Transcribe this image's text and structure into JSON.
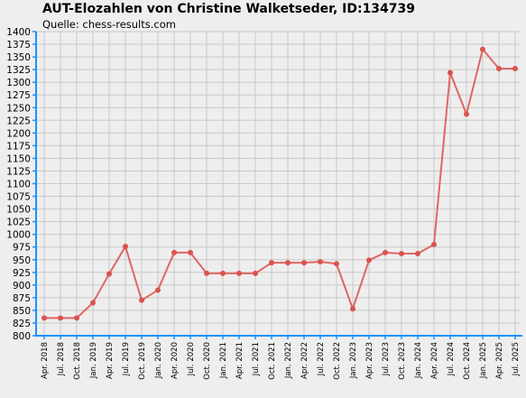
{
  "title": "AUT-Elozahlen von Christine Walketseder, ID:134739",
  "subtitle": "Quelle: chess-results.com",
  "colors": {
    "background": "#eeeeee",
    "grid": "#c8c8c8",
    "axis": "#1e90ff",
    "line": "#e06666",
    "marker": "#d9534f"
  },
  "chart_data": {
    "type": "line",
    "title": "AUT-Elozahlen von Christine Walketseder, ID:134739",
    "subtitle": "Quelle: chess-results.com",
    "xlabel": "",
    "ylabel": "",
    "ylim": [
      800,
      1400
    ],
    "ytick_step": 25,
    "grid": true,
    "legend": "none",
    "categories": [
      "Apr. 2018",
      "Jul. 2018",
      "Oct. 2018",
      "Jan. 2019",
      "Apr. 2019",
      "Jul. 2019",
      "Oct. 2019",
      "Jan. 2020",
      "Apr. 2020",
      "Jul. 2020",
      "Oct. 2020",
      "Jan. 2021",
      "Apr. 2021",
      "Jul. 2021",
      "Oct. 2021",
      "Jan. 2022",
      "Apr. 2022",
      "Jul. 2022",
      "Oct. 2022",
      "Jan. 2023",
      "Apr. 2023",
      "Jul. 2023",
      "Oct. 2023",
      "Jan. 2024",
      "Apr. 2024",
      "Jul. 2024",
      "Oct. 2024",
      "Jan. 2025",
      "Apr. 2025",
      "Jul. 2025"
    ],
    "series": [
      {
        "values": [
          835,
          835,
          835,
          865,
          922,
          976,
          870,
          890,
          964,
          964,
          923,
          923,
          923,
          923,
          944,
          944,
          944,
          946,
          942,
          853,
          949,
          964,
          962,
          962,
          980,
          1319,
          1237,
          1365,
          1327,
          1327
        ]
      }
    ]
  }
}
